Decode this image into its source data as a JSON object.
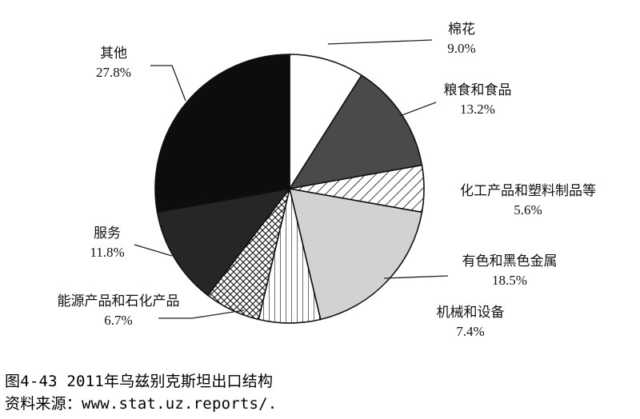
{
  "chart_data": {
    "type": "pie",
    "start_angle_deg": 0,
    "direction": "clockwise",
    "slices": [
      {
        "label": "棉花",
        "value": 9.0,
        "value_label": "9.0%",
        "fill": "white",
        "color": "#ffffff"
      },
      {
        "label": "粮食和食品",
        "value": 13.2,
        "value_label": "13.2%",
        "fill": "solid",
        "color": "#4a4a4a"
      },
      {
        "label": "化工产品和塑料制品等",
        "value": 5.6,
        "value_label": "5.6%",
        "fill": "diagonal-hatch",
        "color": "#ffffff"
      },
      {
        "label": "有色和黑色金属",
        "value": 18.5,
        "value_label": "18.5%",
        "fill": "solid",
        "color": "#d2d2d2"
      },
      {
        "label": "机械和设备",
        "value": 7.4,
        "value_label": "7.4%",
        "fill": "vertical-lines",
        "color": "#ffffff"
      },
      {
        "label": "能源产品和石化产品",
        "value": 6.7,
        "value_label": "6.7%",
        "fill": "crosshatch",
        "color": "#ffffff"
      },
      {
        "label": "服务",
        "value": 11.8,
        "value_label": "11.8%",
        "fill": "solid",
        "color": "#262626"
      },
      {
        "label": "其他",
        "value": 27.8,
        "value_label": "27.8%",
        "fill": "solid",
        "color": "#0d0d0d"
      }
    ]
  },
  "caption": {
    "title": "图4-43  2011年乌兹别克斯坦出口结构",
    "source": "资料来源：www.stat.uz.reports/."
  }
}
